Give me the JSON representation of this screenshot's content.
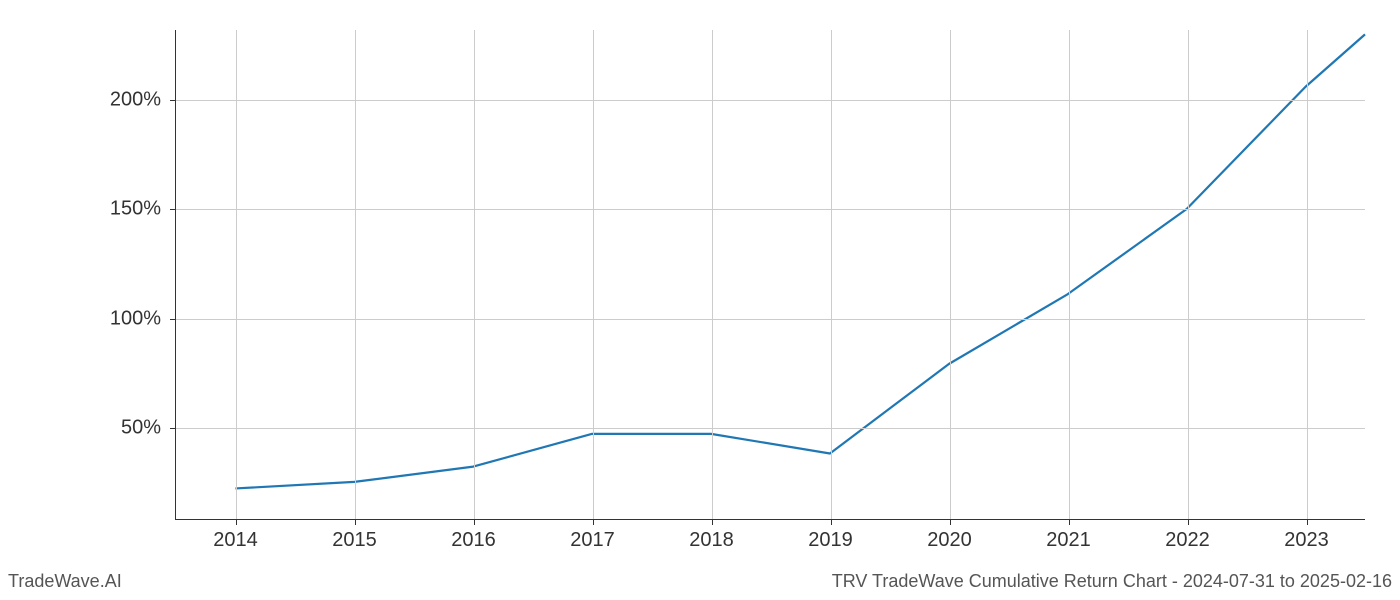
{
  "chart": {
    "type": "line",
    "x_values": [
      2014,
      2015,
      2016,
      2017,
      2018,
      2019,
      2020,
      2021,
      2022,
      2023,
      2023.5
    ],
    "y_values": [
      22,
      25,
      32,
      47,
      47,
      38,
      79,
      111,
      150,
      206,
      230
    ],
    "line_color": "#1f77b4",
    "line_width": 2.2,
    "background_color": "#ffffff",
    "grid_color": "#cccccc",
    "axis_color": "#333333",
    "xlim": [
      2013.5,
      2023.5
    ],
    "ylim": [
      8,
      232
    ],
    "x_ticks": [
      2014,
      2015,
      2016,
      2017,
      2018,
      2019,
      2020,
      2021,
      2022,
      2023
    ],
    "x_tick_labels": [
      "2014",
      "2015",
      "2016",
      "2017",
      "2018",
      "2019",
      "2020",
      "2021",
      "2022",
      "2023"
    ],
    "y_ticks": [
      50,
      100,
      150,
      200
    ],
    "y_tick_labels": [
      "50%",
      "100%",
      "150%",
      "200%"
    ],
    "tick_fontsize": 20,
    "footer_fontsize": 18,
    "footer_color": "#555555"
  },
  "footer": {
    "left": "TradeWave.AI",
    "right": "TRV TradeWave Cumulative Return Chart - 2024-07-31 to 2025-02-16"
  }
}
